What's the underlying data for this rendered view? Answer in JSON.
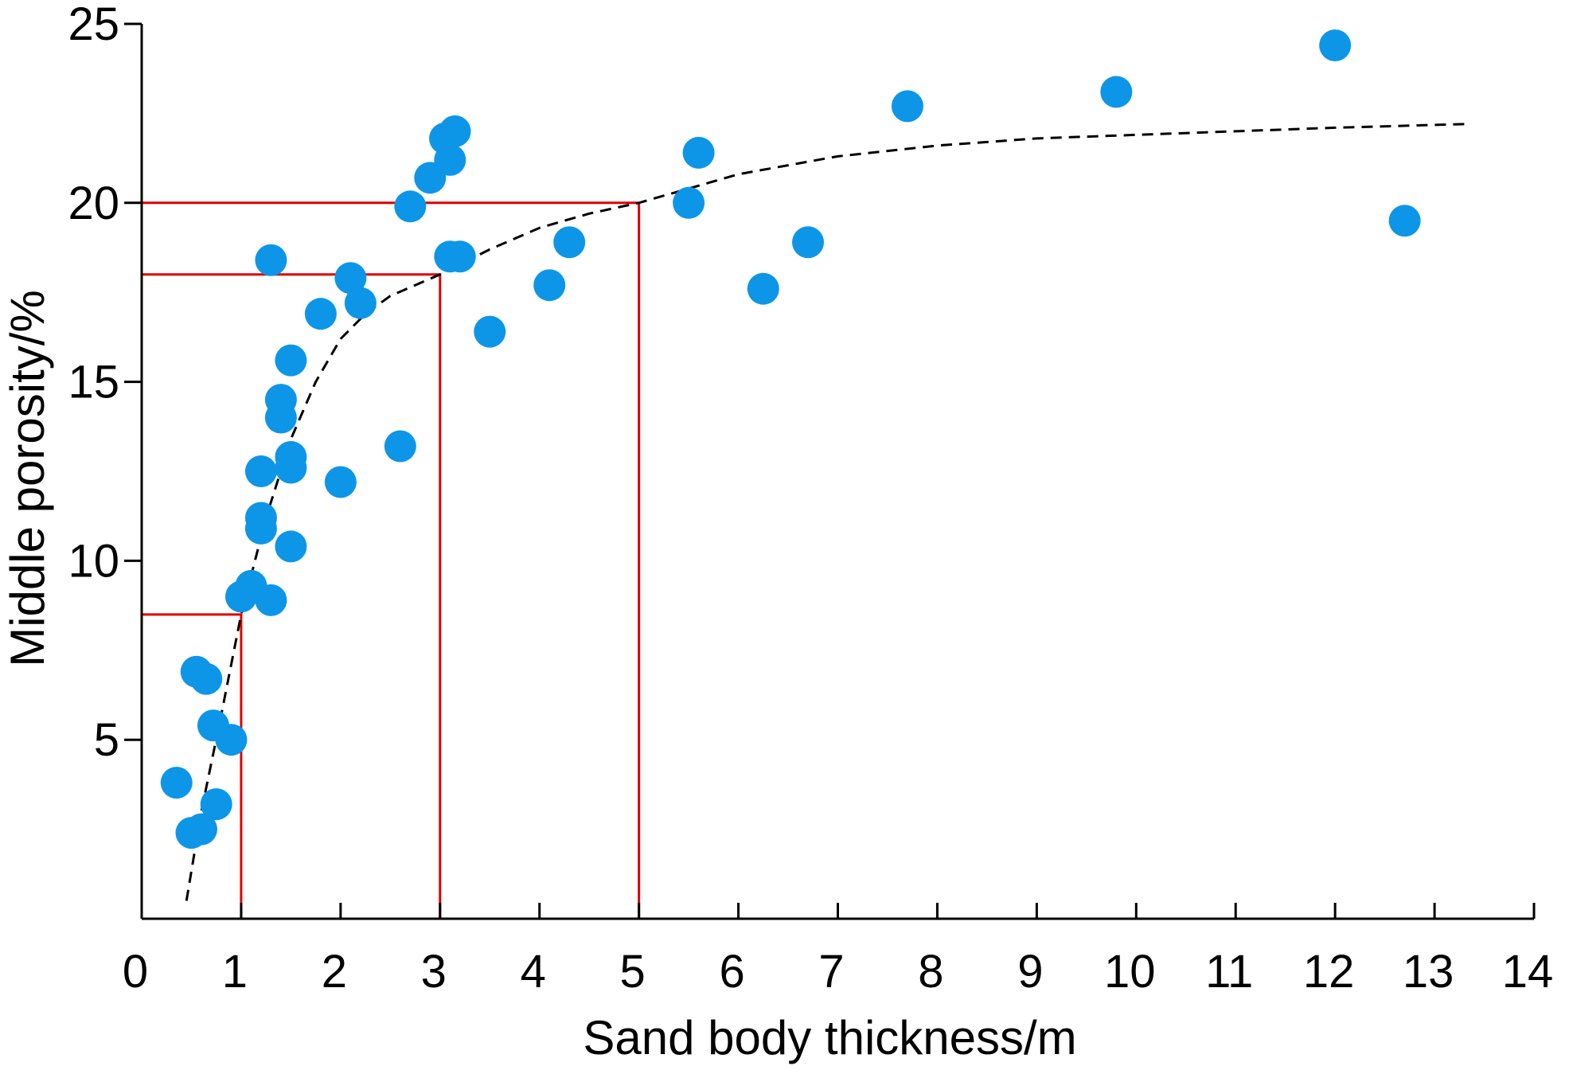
{
  "chart_data": {
    "type": "scatter",
    "title": "",
    "xlabel": "Sand body thickness/m",
    "ylabel": "Middle porosity/%",
    "xlim": [
      0,
      14
    ],
    "ylim": [
      0,
      25
    ],
    "x_ticks": [
      0,
      1,
      2,
      3,
      4,
      5,
      6,
      7,
      8,
      9,
      10,
      11,
      12,
      13,
      14
    ],
    "y_ticks": [
      5,
      10,
      15,
      20,
      25
    ],
    "x_tick_labels": [
      "0",
      "1",
      "2",
      "3",
      "4",
      "5",
      "6",
      "7",
      "8",
      "9",
      "10",
      "11",
      "12",
      "13",
      "14"
    ],
    "y_tick_labels": [
      "5",
      "10",
      "15",
      "20",
      "25"
    ],
    "grid": false,
    "point_color": "#0d96e8",
    "reference_color": "#e00000",
    "series": [
      {
        "points": [
          [
            0.35,
            3.8
          ],
          [
            0.5,
            2.4
          ],
          [
            0.6,
            2.5
          ],
          [
            0.75,
            3.2
          ],
          [
            0.55,
            6.9
          ],
          [
            0.65,
            6.7
          ],
          [
            0.72,
            5.4
          ],
          [
            0.9,
            5.0
          ],
          [
            1.0,
            9.0
          ],
          [
            1.1,
            9.3
          ],
          [
            1.3,
            8.9
          ],
          [
            1.2,
            11.2
          ],
          [
            1.2,
            10.9
          ],
          [
            1.2,
            12.5
          ],
          [
            1.5,
            10.4
          ],
          [
            1.5,
            12.6
          ],
          [
            1.5,
            12.9
          ],
          [
            1.4,
            14.0
          ],
          [
            1.4,
            14.5
          ],
          [
            1.5,
            15.6
          ],
          [
            1.3,
            18.4
          ],
          [
            1.8,
            16.9
          ],
          [
            2.0,
            12.2
          ],
          [
            2.1,
            17.9
          ],
          [
            2.2,
            17.2
          ],
          [
            2.6,
            13.2
          ],
          [
            2.7,
            19.9
          ],
          [
            2.9,
            20.7
          ],
          [
            3.1,
            21.2
          ],
          [
            3.05,
            21.8
          ],
          [
            3.15,
            22.0
          ],
          [
            3.1,
            18.5
          ],
          [
            3.2,
            18.5
          ],
          [
            3.5,
            16.4
          ],
          [
            4.1,
            17.7
          ],
          [
            4.3,
            18.9
          ],
          [
            5.5,
            20.0
          ],
          [
            5.6,
            21.4
          ],
          [
            6.25,
            17.6
          ],
          [
            6.7,
            18.9
          ],
          [
            7.7,
            22.7
          ],
          [
            9.8,
            23.1
          ],
          [
            12.0,
            24.4
          ],
          [
            12.7,
            19.5
          ]
        ]
      }
    ],
    "fit_curve": {
      "style": "dashed",
      "x": [
        0.45,
        0.6,
        0.8,
        1.0,
        1.25,
        1.5,
        1.75,
        2.0,
        2.25,
        2.5,
        2.75,
        3.0,
        3.5,
        4.0,
        4.5,
        5.0,
        5.5,
        6.0,
        7.0,
        8.0,
        9.0,
        10.0,
        11.0,
        12.0,
        13.3
      ],
      "y": [
        0.5,
        3.0,
        5.7,
        8.5,
        11.2,
        13.4,
        15.0,
        16.2,
        16.9,
        17.4,
        17.7,
        18.0,
        18.7,
        19.3,
        19.7,
        20.0,
        20.4,
        20.8,
        21.3,
        21.6,
        21.8,
        21.9,
        22.0,
        22.1,
        22.2
      ]
    },
    "reference_lines": [
      {
        "x": 1,
        "y": 8.5
      },
      {
        "x": 3,
        "y": 18
      },
      {
        "x": 5,
        "y": 20
      }
    ]
  }
}
